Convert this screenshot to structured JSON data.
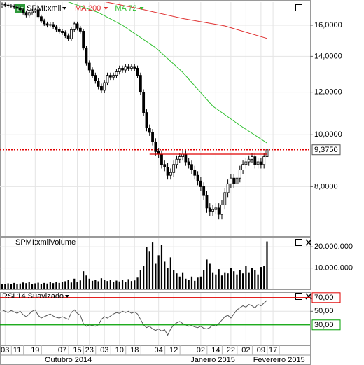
{
  "chart_data": [
    {
      "type": "candlestick",
      "title": "SPMI:xmil",
      "icon": "Eq",
      "open": [
        17400,
        17500,
        17450,
        17400,
        17350,
        17300,
        17200,
        17100,
        16900,
        16700,
        16900,
        17000,
        17100,
        16600,
        16300,
        16100,
        16000,
        16050,
        15900,
        15700,
        15600,
        15500,
        15300,
        15100,
        15700,
        16100,
        15800,
        15600,
        14500,
        13600,
        13200,
        12900,
        12600,
        12300,
        12100,
        12500,
        12900,
        12800,
        12900,
        13100,
        13300,
        13200,
        13400,
        13300,
        13400,
        13300,
        12900,
        12000,
        11000,
        10300,
        10100,
        9700,
        9300,
        9200,
        8800,
        8700,
        8400,
        8500,
        8800,
        9000,
        9100,
        9200,
        8900,
        8800,
        8600,
        8400,
        8200,
        8000,
        7700,
        7300,
        7200,
        7250,
        7300,
        7100,
        7400,
        7800,
        8100,
        8300,
        8100,
        8300,
        8600,
        8800,
        8900,
        9000,
        9100,
        8800,
        8900,
        8800,
        9100
      ],
      "high": [
        17650,
        17650,
        17600,
        17550,
        17500,
        17450,
        17350,
        17250,
        17050,
        17050,
        17150,
        17250,
        17250,
        16750,
        16450,
        16250,
        16200,
        16200,
        16050,
        15850,
        15750,
        15650,
        15450,
        15850,
        16250,
        16250,
        15950,
        15750,
        14650,
        13750,
        13350,
        13050,
        12750,
        12450,
        12650,
        13050,
        13050,
        13050,
        13250,
        13450,
        13450,
        13550,
        13550,
        13550,
        13550,
        13450,
        13050,
        12150,
        11150,
        10450,
        10250,
        9850,
        9450,
        9350,
        8950,
        8850,
        8650,
        8950,
        9150,
        9250,
        9350,
        9350,
        9050,
        8950,
        8750,
        8550,
        8350,
        8150,
        7850,
        7450,
        7400,
        7450,
        7450,
        7550,
        7950,
        8250,
        8450,
        8450,
        8450,
        8750,
        8950,
        9050,
        9150,
        9250,
        9250,
        9050,
        9050,
        9250,
        9500
      ],
      "low": [
        17250,
        17300,
        17250,
        17200,
        17150,
        17050,
        16950,
        16750,
        16550,
        16550,
        16750,
        16850,
        16450,
        16150,
        15950,
        15850,
        15850,
        15750,
        15550,
        15450,
        15350,
        15150,
        14950,
        14950,
        15550,
        15650,
        15450,
        14350,
        13450,
        13050,
        12750,
        12450,
        12150,
        11950,
        11950,
        12350,
        12650,
        12650,
        12750,
        12950,
        13050,
        13050,
        13150,
        13150,
        13150,
        12750,
        11850,
        10850,
        10150,
        9950,
        9550,
        9150,
        9050,
        8650,
        8550,
        8250,
        8250,
        8350,
        8650,
        8850,
        8950,
        8750,
        8650,
        8450,
        8250,
        8050,
        7850,
        7550,
        7150,
        7050,
        7050,
        7100,
        6950,
        6950,
        7250,
        7650,
        7950,
        7950,
        7950,
        8150,
        8450,
        8650,
        8750,
        8850,
        8650,
        8650,
        8650,
        8650,
        8950
      ],
      "close": [
        17500,
        17450,
        17400,
        17350,
        17300,
        17200,
        17100,
        16900,
        16700,
        16900,
        17000,
        17100,
        16600,
        16300,
        16100,
        16000,
        16050,
        15900,
        15700,
        15600,
        15500,
        15300,
        15100,
        15700,
        16100,
        15800,
        15600,
        14500,
        13600,
        13200,
        12900,
        12600,
        12300,
        12100,
        12500,
        12900,
        12800,
        12900,
        13100,
        13300,
        13200,
        13400,
        13300,
        13400,
        13300,
        12900,
        12000,
        11000,
        10300,
        10100,
        9700,
        9300,
        9200,
        8800,
        8700,
        8400,
        8500,
        8800,
        9000,
        9100,
        9200,
        8900,
        8800,
        8600,
        8400,
        8200,
        8000,
        7700,
        7300,
        7200,
        7250,
        7300,
        7100,
        7400,
        7800,
        8100,
        8300,
        8100,
        8300,
        8600,
        8800,
        8900,
        9000,
        9100,
        8800,
        8900,
        8800,
        9100,
        9375
      ],
      "up_color": "#ffffff",
      "down_color": "#000000",
      "series": [
        {
          "name": "MA 200",
          "color": "#e03030",
          "x": [
            32,
            46,
            60,
            74,
            88
          ],
          "values": [
            17800,
            17160,
            16470,
            15950,
            15120
          ]
        },
        {
          "name": "MA 72",
          "color": "#30c030",
          "x": [
            20,
            32,
            40,
            51,
            60,
            70,
            79,
            88
          ],
          "values": [
            17850,
            16900,
            16000,
            14530,
            13070,
            11300,
            10410,
            9650
          ]
        }
      ],
      "levels": [
        {
          "value": 9200,
          "from": 49,
          "to": 88,
          "color": "#e00000"
        },
        {
          "value": 9375,
          "label": "9,3750",
          "color": "#e00000",
          "style": "dotted"
        }
      ],
      "xlim": [
        -0.7,
        102.3
      ],
      "ylim": [
        6470,
        17670
      ],
      "log_scale": true,
      "grid": true,
      "yticks": [
        {
          "value": 16000,
          "label": "16,0000"
        },
        {
          "value": 14000,
          "label": "14,0000"
        },
        {
          "value": 12000,
          "label": "12,0000"
        },
        {
          "value": 10000,
          "label": "10,0000"
        },
        {
          "value": 8000,
          "label": "8,0000"
        }
      ]
    },
    {
      "type": "bar",
      "title": "SPMI:xmilVolume",
      "color": "#000000",
      "values": [
        2500000,
        2300000,
        2800000,
        2600000,
        3000000,
        2400000,
        2700000,
        3200000,
        2900000,
        3500000,
        2600000,
        2800000,
        3100000,
        2500000,
        3000000,
        2700000,
        3300000,
        2900000,
        3600000,
        3000000,
        3400000,
        3800000,
        4500000,
        3200000,
        5000000,
        3600000,
        4200000,
        8500000,
        6500000,
        5000000,
        4000000,
        4500000,
        3800000,
        5200000,
        4300000,
        3900000,
        4600000,
        3500000,
        4100000,
        3700000,
        4400000,
        3600000,
        4800000,
        3900000,
        4200000,
        5500000,
        9000000,
        11000000,
        20000000,
        18000000,
        22000000,
        12000000,
        16000000,
        21000000,
        13000000,
        10000000,
        15000000,
        9000000,
        7500000,
        6000000,
        8000000,
        5000000,
        4500000,
        6000000,
        4000000,
        5500000,
        6000000,
        9000000,
        14000000,
        12000000,
        8000000,
        7000000,
        9500000,
        6500000,
        8000000,
        7500000,
        10000000,
        8500000,
        7000000,
        9000000,
        7500000,
        11000000,
        8000000,
        10000000,
        9000000,
        7000000,
        10500000,
        11000000,
        22500000
      ],
      "xlim": [
        -0.7,
        102.3
      ],
      "ylim": [
        0,
        24000000
      ],
      "grid": true,
      "yticks": [
        {
          "value": 20000000,
          "label": "20.000.000"
        },
        {
          "value": 10000000,
          "label": "10.000.000"
        }
      ]
    },
    {
      "type": "line",
      "title": "RSI 14 Suavizado",
      "color": "#555555",
      "values": [
        52,
        50,
        48,
        51,
        49,
        47,
        50,
        45,
        42,
        46,
        50,
        52,
        44,
        40,
        42,
        44,
        46,
        43,
        41,
        40,
        42,
        40,
        38,
        48,
        52,
        47,
        44,
        32,
        28,
        30,
        29,
        28,
        30,
        38,
        42,
        40,
        43,
        46,
        48,
        47,
        50,
        48,
        50,
        47,
        49,
        46,
        38,
        30,
        26,
        28,
        24,
        22,
        24,
        21,
        23,
        15,
        24,
        30,
        33,
        35,
        32,
        30,
        28,
        29,
        27,
        26,
        28,
        25,
        24,
        26,
        30,
        28,
        32,
        37,
        42,
        44,
        40,
        46,
        52,
        55,
        58,
        56,
        60,
        58,
        55,
        60,
        58,
        62,
        66
      ],
      "levels": [
        {
          "value": 70,
          "label": "70,00",
          "color": "#e00000"
        },
        {
          "value": 30,
          "label": "30,00",
          "color": "#00a000"
        }
      ],
      "xlim": [
        -0.7,
        102.3
      ],
      "ylim": [
        0,
        77
      ],
      "grid": true,
      "yticks": [
        {
          "value": 50,
          "label": "50,00"
        }
      ],
      "xticks": [
        {
          "value": 1,
          "label": "03"
        },
        {
          "value": 5,
          "label": "11"
        },
        {
          "value": 11,
          "label": "19"
        },
        {
          "value": 20,
          "label": "07"
        },
        {
          "value": 25,
          "label": "15"
        },
        {
          "value": 29,
          "label": "23"
        },
        {
          "value": 34,
          "label": "03"
        },
        {
          "value": 39,
          "label": "10"
        },
        {
          "value": 44,
          "label": "18"
        },
        {
          "value": 52,
          "label": "04"
        },
        {
          "value": 57,
          "label": "12"
        },
        {
          "value": 66,
          "label": "02"
        },
        {
          "value": 71,
          "label": "14"
        },
        {
          "value": 76,
          "label": "22"
        },
        {
          "value": 81,
          "label": "02"
        },
        {
          "value": 86,
          "label": "09"
        },
        {
          "value": 90,
          "label": "17"
        }
      ],
      "months": [
        {
          "value": 22,
          "label": "Outubro 2014"
        },
        {
          "value": 70,
          "label": "Janeiro 2015"
        },
        {
          "value": 92,
          "label": "Fevereiro 2015"
        }
      ]
    }
  ]
}
